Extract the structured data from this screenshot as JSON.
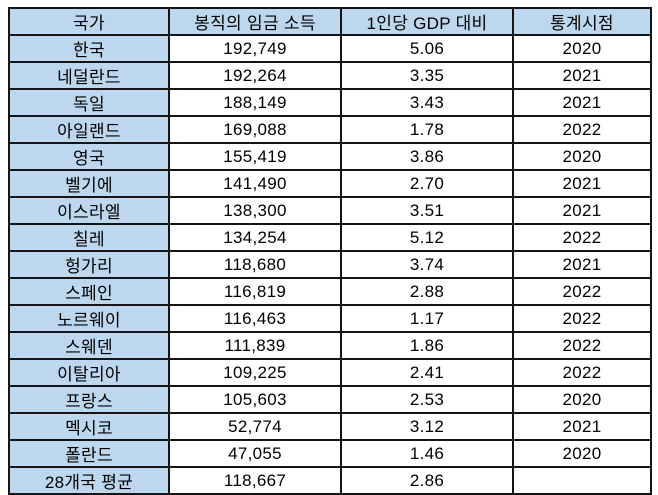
{
  "colors": {
    "header_bg": "#BDD7EE",
    "rowhead_bg": "#BDD7EE",
    "border": "#141414",
    "text": "#000000",
    "page_bg": "#FFFFFF"
  },
  "chart_data": {
    "type": "table",
    "title": "",
    "columns": [
      "국가",
      "봉직의 임금 소득",
      "1인당 GDP 대비",
      "통계시점"
    ],
    "rows": [
      [
        "한국",
        "192,749",
        "5.06",
        "2020"
      ],
      [
        "네덜란드",
        "192,264",
        "3.35",
        "2021"
      ],
      [
        "독일",
        "188,149",
        "3.43",
        "2021"
      ],
      [
        "아일랜드",
        "169,088",
        "1.78",
        "2022"
      ],
      [
        "영국",
        "155,419",
        "3.86",
        "2020"
      ],
      [
        "벨기에",
        "141,490",
        "2.70",
        "2021"
      ],
      [
        "이스라엘",
        "138,300",
        "3.51",
        "2021"
      ],
      [
        "칠레",
        "134,254",
        "5.12",
        "2022"
      ],
      [
        "헝가리",
        "118,680",
        "3.74",
        "2021"
      ],
      [
        "스페인",
        "116,819",
        "2.88",
        "2022"
      ],
      [
        "노르웨이",
        "116,463",
        "1.17",
        "2022"
      ],
      [
        "스웨덴",
        "111,839",
        "1.86",
        "2022"
      ],
      [
        "이탈리아",
        "109,225",
        "2.41",
        "2022"
      ],
      [
        "프랑스",
        "105,603",
        "2.53",
        "2020"
      ],
      [
        "멕시코",
        "52,774",
        "3.12",
        "2021"
      ],
      [
        "폴란드",
        "47,055",
        "1.46",
        "2020"
      ],
      [
        "28개국 평균",
        "118,667",
        "2.86",
        ""
      ]
    ],
    "layout": {
      "grid": true,
      "cell_alignment": "center",
      "header_position": "top",
      "row_header_column": 0
    }
  }
}
